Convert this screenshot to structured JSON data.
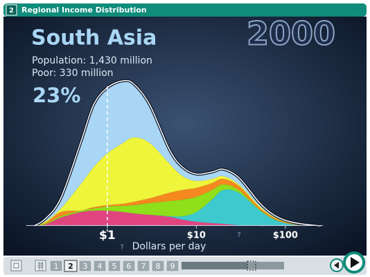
{
  "header": {
    "number": "2",
    "title": "Regional Income Distribution"
  },
  "chart_data": {
    "type": "area",
    "stacked": true,
    "log_x": true,
    "title": "South Asia",
    "year": "2000",
    "annotations": [
      "Population: 1,430 million",
      "Poor: 330 million",
      "23%"
    ],
    "xlabel": "Dollars per day",
    "marker_line_x": 1,
    "x": [
      0.15,
      0.2,
      0.3,
      0.5,
      0.7,
      1,
      1.5,
      2,
      3,
      5,
      7,
      10,
      15,
      20,
      30,
      50,
      70,
      100,
      150,
      250
    ],
    "xlim": [
      0.15,
      250
    ],
    "xticks": [
      {
        "value": 1,
        "label": "$1"
      },
      {
        "value": 10,
        "label": "$10"
      },
      {
        "value": 100,
        "label": "$100"
      }
    ],
    "ylim": [
      0,
      220
    ],
    "series": [
      {
        "color": "#e0457f",
        "values": [
          0,
          2,
          12,
          20,
          22,
          22,
          20,
          18,
          16,
          13,
          9,
          6,
          4,
          3,
          1,
          0,
          0,
          0,
          0,
          0
        ]
      },
      {
        "color": "#3ec9cf",
        "values": [
          0,
          0,
          0,
          0,
          0,
          0,
          0,
          0,
          0,
          1,
          5,
          14,
          34,
          49,
          47,
          24,
          11,
          4,
          1,
          0
        ]
      },
      {
        "color": "#8fe01a",
        "values": [
          0,
          1,
          2,
          2,
          3,
          6,
          9,
          12,
          17,
          22,
          24,
          22,
          14,
          8,
          4,
          1,
          1,
          0,
          0,
          0
        ]
      },
      {
        "color": "#f5891f",
        "values": [
          0,
          1,
          6,
          0,
          2,
          2,
          3,
          5,
          7,
          12,
          14,
          13,
          10,
          8,
          6,
          3,
          2,
          1,
          0.5,
          0
        ]
      },
      {
        "color": "#eef53a",
        "values": [
          0,
          2,
          5,
          38,
          58,
          75,
          88,
          93,
          80,
          42,
          20,
          10,
          6,
          4,
          2,
          2,
          1,
          1,
          0.5,
          0
        ]
      },
      {
        "color": "#a9d6f5",
        "values": [
          0,
          4,
          15,
          60,
          90,
          95,
          90,
          77,
          55,
          20,
          13,
          10,
          10,
          10,
          10,
          5,
          3,
          2,
          1,
          0
        ]
      }
    ]
  },
  "help_icons": [
    "?",
    "?"
  ],
  "toolbar": {
    "pages": [
      "1",
      "2",
      "3",
      "4",
      "5",
      "6",
      "7",
      "8",
      "9"
    ],
    "current_page_index": 1
  }
}
